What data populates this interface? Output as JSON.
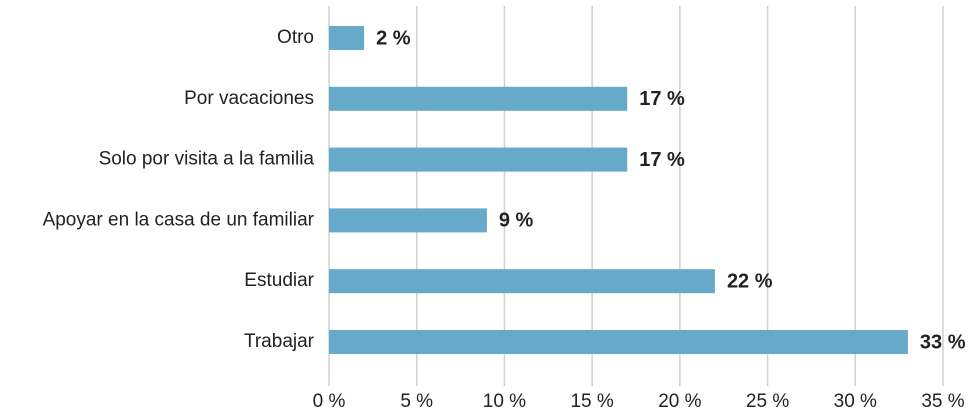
{
  "chart_data": {
    "type": "hbar",
    "categories": [
      "Otro",
      "Por vacaciones",
      "Solo por visita a la familia",
      "Apoyar en la casa de un familiar",
      "Estudiar",
      "Trabajar"
    ],
    "values": [
      2,
      17,
      17,
      9,
      22,
      33
    ],
    "value_labels": [
      "2 %",
      "17 %",
      "17 %",
      "9 %",
      "22 %",
      "33 %"
    ],
    "color": "#67a9c9",
    "xlim": [
      0,
      35
    ],
    "xticks": [
      {
        "value": 0,
        "label": "0 %"
      },
      {
        "value": 5,
        "label": "5 %"
      },
      {
        "value": 10,
        "label": "10 %"
      },
      {
        "value": 15,
        "label": "15 %"
      },
      {
        "value": 20,
        "label": "20 %"
      },
      {
        "value": 25,
        "label": "25 %"
      },
      {
        "value": 30,
        "label": "30 %"
      },
      {
        "value": 35,
        "label": "35 %"
      }
    ],
    "grid": true
  }
}
